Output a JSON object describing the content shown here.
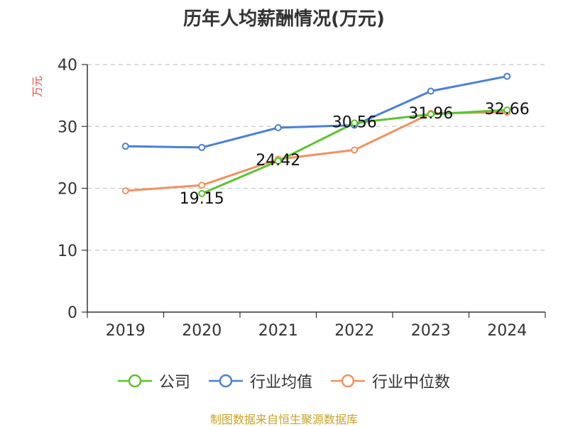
{
  "chart_data": {
    "type": "line",
    "title": "历年人均薪酬情况(万元)",
    "ylabel": "万元",
    "xlabel": "",
    "categories": [
      "2019",
      "2020",
      "2021",
      "2022",
      "2023",
      "2024"
    ],
    "ylim": [
      0,
      40
    ],
    "yticks": [
      0,
      10,
      20,
      30,
      40
    ],
    "grid": true,
    "legend_position": "bottom",
    "series": [
      {
        "name": "公司",
        "color": "#5cc32f",
        "values": [
          null,
          19.15,
          24.42,
          30.56,
          31.96,
          32.66
        ],
        "labels": [
          null,
          "19.15",
          "24.42",
          "30.56",
          "31.96",
          "32.66"
        ]
      },
      {
        "name": "行业均值",
        "color": "#4a7fd6",
        "values": [
          26.8,
          26.6,
          29.8,
          30.2,
          35.7,
          38.1
        ]
      },
      {
        "name": "行业中位数",
        "color": "#f39060",
        "values": [
          19.6,
          20.5,
          24.7,
          26.2,
          32.1,
          32.3
        ]
      }
    ]
  },
  "footer": {
    "source": "制图数据来自恒生聚源数据库"
  }
}
